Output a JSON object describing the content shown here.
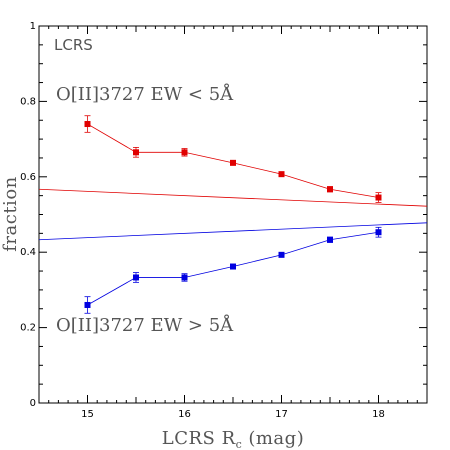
{
  "chart_data": {
    "type": "scatter",
    "xlabel_main": "LCRS R",
    "xlabel_sub": "c",
    "xlabel_unit": "(mag)",
    "ylabel": "fraction",
    "xlim": [
      14.5,
      18.5
    ],
    "ylim": [
      0,
      1
    ],
    "x_ticks": [
      15,
      16,
      17,
      18
    ],
    "x_tick_labels": [
      "15",
      "16",
      "17",
      "18"
    ],
    "y_ticks": [
      0,
      0.2,
      0.4,
      0.6,
      0.8,
      1
    ],
    "y_tick_labels": [
      "0",
      "0.2",
      "0.4",
      "0.6",
      "0.8",
      "1"
    ],
    "annotations": {
      "survey": "LCRS",
      "low_ew": "O[II]3727 EW < 5Å",
      "high_ew": "O[II]3727 EW > 5Å"
    },
    "series": [
      {
        "key": "low_ew",
        "color": "#e00000",
        "x": [
          15,
          15.5,
          16,
          16.5,
          17,
          17.5,
          18
        ],
        "values": [
          0.74,
          0.665,
          0.665,
          0.637,
          0.607,
          0.567,
          0.545
        ],
        "errors": [
          0.022,
          0.013,
          0.01,
          0.006,
          0.006,
          0.007,
          0.013
        ],
        "fit_line": {
          "x": [
            14.5,
            18.5
          ],
          "y": [
            0.567,
            0.522
          ]
        }
      },
      {
        "key": "high_ew",
        "color": "#0000e0",
        "x": [
          15,
          15.5,
          16,
          16.5,
          17,
          17.5,
          18
        ],
        "values": [
          0.26,
          0.333,
          0.333,
          0.362,
          0.393,
          0.433,
          0.453
        ],
        "errors": [
          0.022,
          0.013,
          0.01,
          0.006,
          0.006,
          0.007,
          0.013
        ],
        "fit_line": {
          "x": [
            14.5,
            18.5
          ],
          "y": [
            0.433,
            0.478
          ]
        }
      }
    ],
    "grid": false,
    "legend": "none"
  }
}
